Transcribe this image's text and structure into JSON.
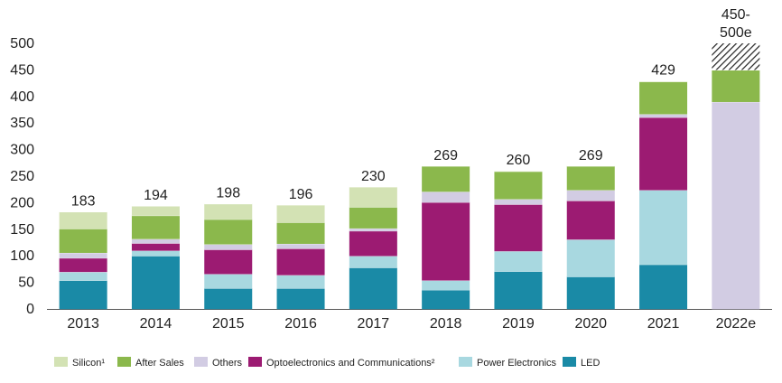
{
  "chart_data": {
    "type": "bar",
    "stacked": true,
    "categories": [
      "2013",
      "2014",
      "2015",
      "2016",
      "2017",
      "2018",
      "2019",
      "2020",
      "2021",
      "2022e"
    ],
    "ylim": [
      0,
      500
    ],
    "yticks": [
      0,
      50,
      100,
      150,
      200,
      250,
      300,
      350,
      400,
      450,
      500
    ],
    "series": [
      {
        "name": "LED",
        "color": "#1a8aa6",
        "values": [
          54,
          100,
          39,
          39,
          78,
          36,
          71,
          61,
          84,
          0
        ]
      },
      {
        "name": "Power Electronics",
        "color": "#a8d8e0",
        "values": [
          16,
          10,
          27,
          25,
          22,
          18,
          38,
          70,
          140,
          0
        ]
      },
      {
        "name": "Optoelectronics and Communications²",
        "color": "#9c1b72",
        "values": [
          26,
          14,
          46,
          50,
          47,
          147,
          88,
          73,
          137,
          0
        ]
      },
      {
        "name": "Others",
        "color": "#d2cce3",
        "values": [
          10,
          8,
          10,
          9,
          5,
          20,
          10,
          20,
          6,
          390
        ]
      },
      {
        "name": "After Sales",
        "color": "#8bb84c",
        "values": [
          45,
          44,
          47,
          40,
          40,
          48,
          52,
          45,
          61,
          60
        ]
      },
      {
        "name": "Silicon¹",
        "color": "#d3e2b4",
        "values": [
          32,
          18,
          29,
          33,
          38,
          0,
          1,
          0,
          1,
          0
        ]
      }
    ],
    "hatched_segment": {
      "category": "2022e",
      "from": 450,
      "to": 500
    },
    "totals": [
      "183",
      "194",
      "198",
      "196",
      "230",
      "269",
      "260",
      "269",
      "429",
      "450-\n500e"
    ],
    "legend_order": [
      "Silicon¹",
      "After Sales",
      "Others",
      "Optoelectronics and Communications²",
      "Power Electronics",
      "LED"
    ],
    "legend_placement": "bottom-left",
    "grid": false
  }
}
